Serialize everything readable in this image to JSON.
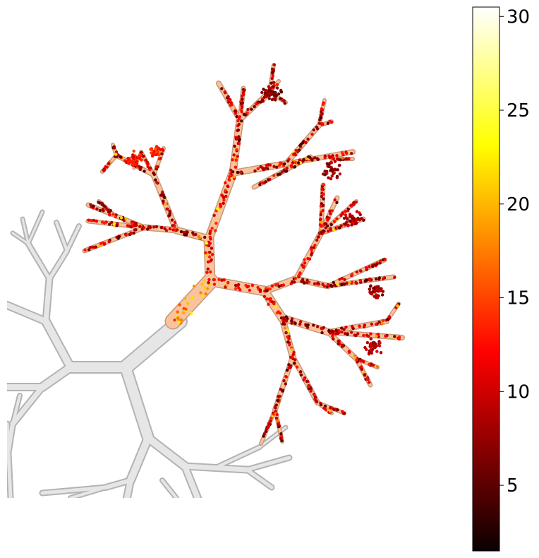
{
  "chart_data": {
    "type": "scatter",
    "title": "",
    "xlabel": "",
    "ylabel": "",
    "colormap": "hot",
    "colorbar": {
      "range": [
        1.5,
        30.5
      ],
      "ticks": [
        5,
        10,
        15,
        20,
        25,
        30
      ],
      "tick_labels": [
        "5",
        "10",
        "15",
        "20",
        "25",
        "30"
      ]
    },
    "colors": {
      "background_tree_fill": "#e6e6e6",
      "background_tree_edge": "#b3b3b3",
      "highlight_tree_fill": "#f9c49b",
      "highlight_tree_edge": "#c8977a"
    }
  }
}
